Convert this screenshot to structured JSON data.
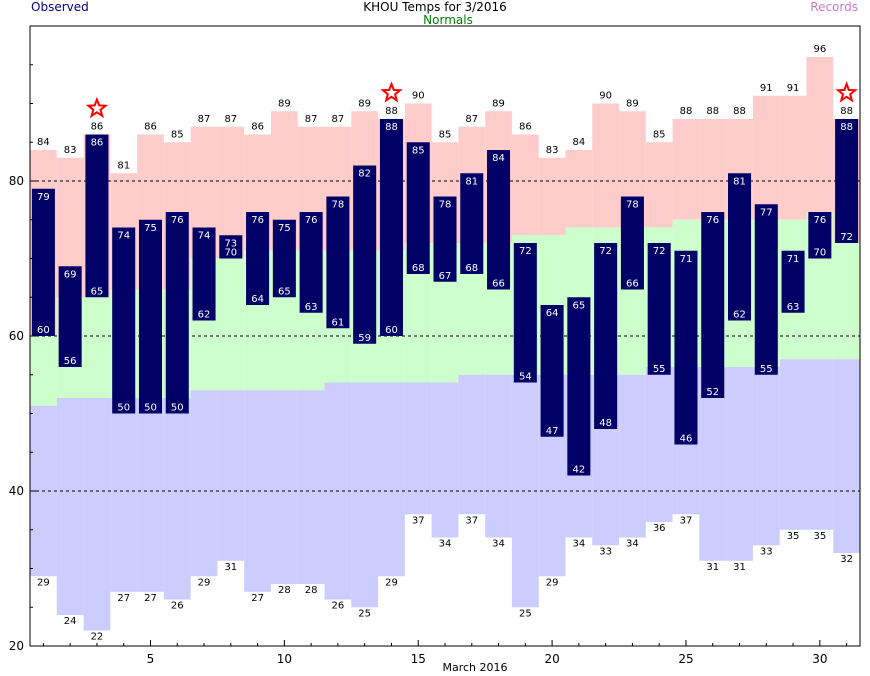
{
  "chart_data": {
    "type": "bar",
    "title": "KHOU Temps for  3/2016",
    "xlabel": "March 2016",
    "ylabel": "",
    "xlim": [
      0.5,
      31.5
    ],
    "ylim": [
      20,
      100
    ],
    "x_ticks": [
      5,
      10,
      15,
      20,
      25,
      30
    ],
    "y_ticks": [
      20,
      40,
      60,
      80
    ],
    "dashed_gridlines": [
      40,
      60,
      80
    ],
    "legend": {
      "observed": "Observed",
      "normals": "Normals",
      "records": "Records"
    },
    "days": [
      1,
      2,
      3,
      4,
      5,
      6,
      7,
      8,
      9,
      10,
      11,
      12,
      13,
      14,
      15,
      16,
      17,
      18,
      19,
      20,
      21,
      22,
      23,
      24,
      25,
      26,
      27,
      28,
      29,
      30,
      31
    ],
    "observed_high": [
      79,
      69,
      86,
      74,
      75,
      76,
      74,
      73,
      76,
      75,
      76,
      78,
      82,
      88,
      85,
      78,
      81,
      84,
      72,
      64,
      65,
      72,
      78,
      72,
      71,
      76,
      81,
      77,
      71,
      76,
      88
    ],
    "observed_low": [
      60,
      56,
      65,
      50,
      50,
      50,
      62,
      70,
      64,
      65,
      63,
      61,
      59,
      60,
      68,
      67,
      68,
      66,
      54,
      47,
      42,
      48,
      66,
      55,
      46,
      52,
      62,
      55,
      63,
      70,
      72
    ],
    "normal_high": [
      60,
      65,
      65,
      66,
      66,
      66,
      70,
      70,
      71,
      71,
      71,
      71,
      71,
      71,
      72,
      72,
      72,
      72,
      73,
      73,
      74,
      74,
      74,
      74,
      75,
      75,
      75,
      75,
      75,
      76,
      72
    ],
    "normal_low": [
      51,
      52,
      52,
      52,
      52,
      52,
      53,
      53,
      53,
      53,
      53,
      54,
      54,
      54,
      54,
      54,
      55,
      55,
      55,
      55,
      55,
      55,
      55,
      56,
      56,
      56,
      56,
      56,
      57,
      57,
      57
    ],
    "record_high": [
      84,
      83,
      86,
      81,
      86,
      85,
      87,
      87,
      86,
      89,
      87,
      87,
      89,
      88,
      90,
      85,
      87,
      89,
      86,
      83,
      84,
      90,
      89,
      85,
      88,
      88,
      88,
      91,
      91,
      96,
      88
    ],
    "record_low": [
      29,
      24,
      22,
      27,
      27,
      26,
      29,
      31,
      27,
      28,
      28,
      26,
      25,
      29,
      37,
      34,
      37,
      34,
      25,
      29,
      34,
      33,
      34,
      36,
      37,
      31,
      31,
      33,
      35,
      35,
      32
    ],
    "record_markers": [
      3,
      14,
      31
    ],
    "colors": {
      "observed_bar": "#000066",
      "observed_text": "#000080",
      "normals_text": "#008000",
      "records_text": "#cc77cc",
      "record_high_fill": "#ffcccc",
      "normal_fill": "#ccffcc",
      "record_low_fill": "#ccccff",
      "star": "#ff0000"
    }
  }
}
